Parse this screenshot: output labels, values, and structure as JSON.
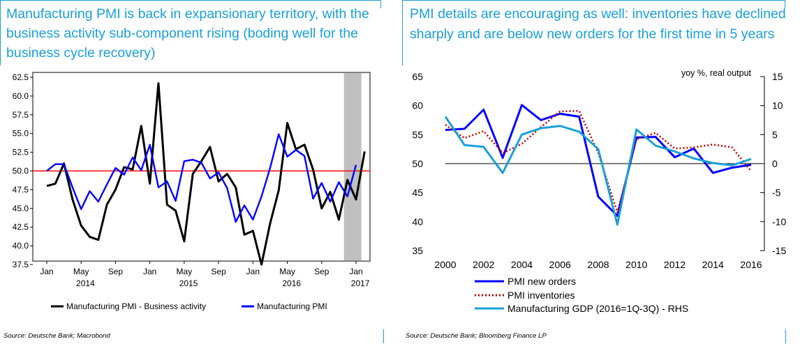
{
  "left": {
    "title": "Manufacturing PMI is back in expansionary territory, with the business activity sub-component rising (boding well for the business cycle recovery)",
    "source": "Source: Deutsche Bank; Macrobond"
  },
  "right": {
    "title": "PMI details are encouraging as well: inventories have declined sharply and are below new orders for the first time in 5 years",
    "source": "Source: Deutsche Bank; Bloomberg Finance LP"
  },
  "chart_data": [
    {
      "type": "line",
      "title": "",
      "xlabel": "",
      "ylabel": "",
      "ylim": [
        37.5,
        62.5
      ],
      "yticks": [
        "62.5",
        "60.0",
        "57.5",
        "55.0",
        "52.5",
        "50.0",
        "47.5",
        "45.0",
        "42.5",
        "40.0",
        "37.5"
      ],
      "xtick_labels": [
        "Jan",
        "May",
        "Sep",
        "Jan",
        "May",
        "Sep",
        "Jan",
        "May",
        "Sep",
        "Jan"
      ],
      "year_labels": [
        "2014",
        "2015",
        "2016",
        "2017"
      ],
      "reference_line": 50.0,
      "shaded_period": "Dec 2016 - Feb 2017",
      "legend": [
        "Manufacturing PMI - Business activity",
        "Manufacturing PMI"
      ],
      "series": [
        {
          "name": "Manufacturing PMI - Business activity",
          "color": "#000000",
          "values": [
            48.0,
            48.3,
            51.0,
            46.2,
            42.7,
            41.2,
            40.8,
            45.5,
            47.5,
            50.5,
            50.2,
            56.0,
            48.3,
            61.7,
            45.5,
            44.7,
            40.6,
            49.6,
            51.3,
            53.2,
            48.6,
            49.6,
            47.8,
            41.5,
            42.0,
            37.5,
            43.0,
            47.4,
            56.4,
            52.9,
            53.5,
            50.2,
            45.0,
            47.2,
            43.5,
            48.8,
            46.2,
            52.6
          ]
        },
        {
          "name": "Manufacturing PMI",
          "color": "#0000ff",
          "values": [
            50.0,
            50.9,
            50.9,
            47.8,
            44.9,
            47.3,
            45.9,
            48.2,
            50.4,
            49.5,
            51.8,
            50.1,
            53.5,
            47.8,
            48.6,
            46.0,
            51.3,
            51.5,
            51.1,
            49.0,
            49.8,
            47.7,
            43.2,
            45.4,
            43.5,
            46.6,
            50.4,
            54.9,
            51.9,
            52.8,
            52.0,
            46.3,
            48.4,
            45.9,
            48.5,
            46.6,
            50.8
          ]
        }
      ]
    },
    {
      "type": "line",
      "title": "",
      "annotation": "yoy %, real output",
      "x": [
        2000,
        2001,
        2002,
        2003,
        2004,
        2005,
        2006,
        2007,
        2008,
        2009,
        2010,
        2011,
        2012,
        2013,
        2014,
        2015,
        2016
      ],
      "xtick_labels": [
        "2000",
        "2002",
        "2004",
        "2006",
        "2008",
        "2010",
        "2012",
        "2014",
        "2016"
      ],
      "ylim": [
        35,
        65
      ],
      "yticks": [
        "65",
        "60",
        "55",
        "50",
        "45",
        "40",
        "35"
      ],
      "y2lim": [
        -15,
        15
      ],
      "y2ticks": [
        "15",
        "10",
        "5",
        "0",
        "-5",
        "-10",
        "-15"
      ],
      "legend": [
        "PMI new orders",
        "PMI inventories",
        "Manufacturing GDP (2016=1Q-3Q) - RHS"
      ],
      "series": [
        {
          "name": "PMI new orders",
          "color": "#0000ff",
          "axis": "left",
          "x": [
            2000,
            2001,
            2002,
            2003,
            2004,
            2005,
            2006,
            2007,
            2008,
            2009,
            2010,
            2011,
            2012,
            2013,
            2014,
            2015,
            2016
          ],
          "values": [
            55.8,
            56.0,
            59.3,
            51.0,
            60.1,
            57.5,
            58.6,
            58.1,
            44.3,
            41.0,
            54.5,
            54.6,
            51.1,
            52.6,
            48.4,
            49.3,
            49.8
          ]
        },
        {
          "name": "PMI inventories",
          "color": "#c00000",
          "axis": "left",
          "dash": "dotted",
          "x": [
            2000,
            2001,
            2002,
            2003,
            2004,
            2005,
            2006,
            2007,
            2008,
            2009,
            2010,
            2011,
            2012,
            2013,
            2014,
            2015,
            2016
          ],
          "values": [
            56.7,
            54.4,
            55.6,
            51.8,
            53.4,
            56.3,
            59.0,
            59.1,
            51.8,
            41.6,
            54.2,
            55.3,
            52.6,
            52.8,
            53.3,
            52.8,
            48.7
          ]
        },
        {
          "name": "Manufacturing GDP (2016=1Q-3Q) - RHS",
          "color": "#1aa0d8",
          "axis": "right",
          "x": [
            2000,
            2001,
            2002,
            2003,
            2004,
            2005,
            2006,
            2007,
            2008,
            2009,
            2010,
            2011,
            2012,
            2013,
            2014,
            2015,
            2016
          ],
          "values": [
            8.1,
            3.2,
            2.9,
            -1.6,
            5.0,
            6.1,
            6.5,
            5.5,
            2.5,
            -10.5,
            5.9,
            3.1,
            2.1,
            0.9,
            0.1,
            -0.3,
            0.8
          ]
        }
      ]
    }
  ]
}
